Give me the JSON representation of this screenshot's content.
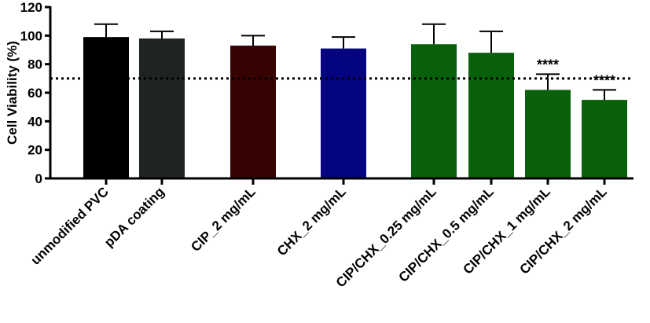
{
  "chart_data": {
    "type": "bar",
    "ylabel": "Cell Viability (%)",
    "ylim": [
      0,
      120
    ],
    "yticks": [
      0,
      20,
      40,
      60,
      80,
      100,
      120
    ],
    "reference_line": 70,
    "categories": [
      "unmodified PVC",
      "pDA coating",
      "CIP_2 mg/mL",
      "CHX_2 mg/mL",
      "CIP/CHX_0.25 mg/mL",
      "CIP/CHX_0.5 mg/mL",
      "CIP/CHX_1 mg/mL",
      "CIP/CHX_2 mg/mL"
    ],
    "values": [
      99,
      98,
      93,
      91,
      94,
      88,
      62,
      55
    ],
    "errors": [
      9,
      5,
      7,
      8,
      14,
      15,
      11,
      7
    ],
    "colors": [
      "#000000",
      "#1f2322",
      "#360303",
      "#040480",
      "#08600a",
      "#08600a",
      "#08600a",
      "#08600a"
    ],
    "significance": [
      "",
      "",
      "",
      "",
      "",
      "",
      "****",
      "****"
    ],
    "grid": false
  }
}
